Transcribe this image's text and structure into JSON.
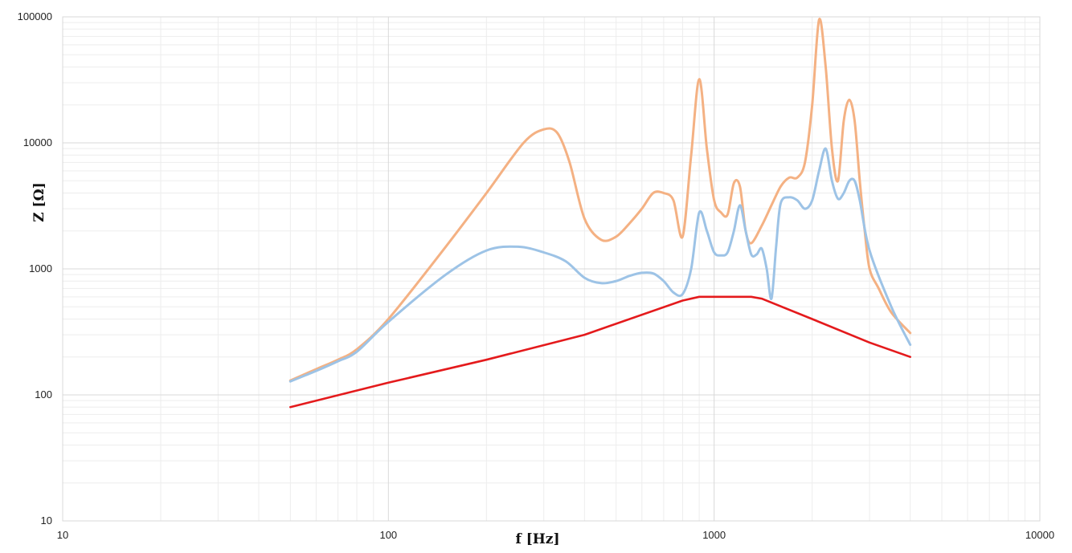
{
  "chart_data": {
    "type": "line",
    "xlabel": "f [Hz]",
    "ylabel": "Z [Ω]",
    "xscale": "log",
    "yscale": "log",
    "xlim": [
      10,
      10000
    ],
    "ylim": [
      10,
      100000
    ],
    "x_ticks": [
      "10",
      "100",
      "1000",
      "10000"
    ],
    "y_ticks": [
      "10",
      "100",
      "1000",
      "10000",
      "100000"
    ],
    "grid": true,
    "colors": {
      "orange": "#f4b183",
      "blue": "#9dc3e6",
      "red": "#e41a1c",
      "grid": "#d9d9d9"
    },
    "series": [
      {
        "color": "orange",
        "x": [
          50,
          60,
          70,
          80,
          100,
          150,
          200,
          260,
          300,
          330,
          360,
          400,
          450,
          500,
          550,
          600,
          650,
          700,
          750,
          800,
          850,
          900,
          950,
          1000,
          1050,
          1100,
          1150,
          1200,
          1250,
          1300,
          1400,
          1500,
          1600,
          1700,
          1800,
          1900,
          2000,
          2100,
          2200,
          2300,
          2400,
          2500,
          2600,
          2700,
          2800,
          2900,
          3000,
          3200,
          3500,
          4000
        ],
        "y": [
          130,
          160,
          190,
          230,
          400,
          1500,
          4000,
          10000,
          12800,
          12000,
          7000,
          2500,
          1700,
          1800,
          2300,
          3000,
          4000,
          4000,
          3500,
          1800,
          8000,
          32000,
          9000,
          3500,
          2800,
          2700,
          4800,
          4500,
          2000,
          1600,
          2200,
          3200,
          4500,
          5300,
          5300,
          7000,
          20000,
          95000,
          40000,
          9000,
          5000,
          15000,
          22000,
          15000,
          5000,
          2000,
          1000,
          700,
          450,
          310
        ]
      },
      {
        "color": "blue",
        "x": [
          50,
          60,
          70,
          80,
          100,
          150,
          200,
          250,
          300,
          350,
          400,
          450,
          500,
          550,
          600,
          650,
          700,
          750,
          800,
          850,
          900,
          950,
          1000,
          1050,
          1100,
          1150,
          1200,
          1250,
          1300,
          1350,
          1400,
          1450,
          1500,
          1550,
          1600,
          1700,
          1800,
          1900,
          2000,
          2100,
          2200,
          2300,
          2400,
          2500,
          2600,
          2700,
          2800,
          3000,
          3500,
          4000
        ],
        "y": [
          128,
          155,
          185,
          220,
          380,
          900,
          1400,
          1500,
          1350,
          1150,
          850,
          770,
          800,
          880,
          930,
          920,
          800,
          650,
          630,
          1000,
          2800,
          2000,
          1350,
          1280,
          1350,
          2000,
          3200,
          2000,
          1300,
          1300,
          1450,
          1000,
          580,
          1500,
          3300,
          3700,
          3500,
          3000,
          3500,
          6000,
          9000,
          5000,
          3600,
          4000,
          5000,
          5000,
          3500,
          1400,
          500,
          250
        ]
      },
      {
        "color": "red",
        "x": [
          50,
          100,
          200,
          400,
          800,
          900,
          1000,
          1200,
          1300,
          1400,
          2000,
          3000,
          4000
        ],
        "y": [
          80,
          125,
          190,
          300,
          560,
          600,
          600,
          600,
          600,
          580,
          400,
          260,
          200
        ]
      }
    ]
  }
}
